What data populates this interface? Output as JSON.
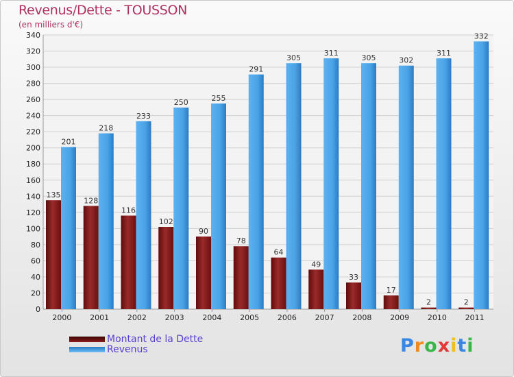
{
  "chart_data": {
    "type": "bar",
    "title": "Revenus/Dette - TOUSSON",
    "subtitle": "(en milliers d'€)",
    "xlabel": "",
    "ylabel": "",
    "categories": [
      "2000",
      "2001",
      "2002",
      "2003",
      "2004",
      "2005",
      "2006",
      "2007",
      "2008",
      "2009",
      "2010",
      "2011"
    ],
    "series": [
      {
        "name": "Montant de la Dette",
        "color": "#8b1a1a",
        "values": [
          135,
          128,
          116,
          102,
          90,
          78,
          64,
          49,
          33,
          17,
          2,
          2
        ]
      },
      {
        "name": "Revenus",
        "color": "#4aa3e6",
        "values": [
          201,
          218,
          233,
          250,
          255,
          291,
          305,
          311,
          305,
          302,
          311,
          332
        ]
      }
    ],
    "ylim": [
      0,
      340
    ],
    "yticks": [
      0,
      20,
      40,
      60,
      80,
      100,
      120,
      140,
      160,
      180,
      200,
      220,
      240,
      260,
      280,
      300,
      320,
      340
    ],
    "grid": true,
    "legend_position": "bottom-left"
  },
  "branding": {
    "logo_letters": [
      "P",
      "r",
      "o",
      "x",
      "i",
      "t",
      "i"
    ],
    "logo_colors": [
      "#3a86e0",
      "#f08a1c",
      "#3ab54a",
      "#e03a3a",
      "#f0c020",
      "#3a86e0",
      "#3ab54a"
    ]
  }
}
